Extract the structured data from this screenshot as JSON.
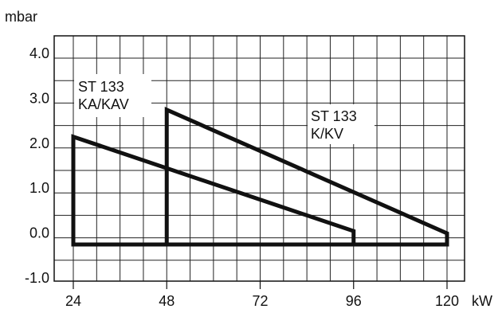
{
  "chart_data": {
    "type": "line",
    "x_unit": "kW",
    "y_unit": "mbar",
    "xlim": [
      18,
      125
    ],
    "ylim": [
      -1.0,
      4.3
    ],
    "x_ticks": [
      24,
      48,
      72,
      96,
      120
    ],
    "x_tick_labels": [
      "24",
      "48",
      "72",
      "96",
      "120"
    ],
    "y_ticks": [
      4.0,
      3.0,
      2.0,
      1.0,
      0.0,
      -1.0
    ],
    "y_tick_labels": [
      "4.0",
      "3.0",
      "2.0",
      "1.0",
      "0.0",
      "-1.0"
    ],
    "grid": true,
    "series": [
      {
        "name": "ST 133\nKA/KAV",
        "label_lines": [
          "ST 133",
          "KA/KAV"
        ],
        "x": [
          24,
          24,
          96,
          96,
          24
        ],
        "y": [
          -0.15,
          2.25,
          0.15,
          -0.15,
          -0.15
        ]
      },
      {
        "name": "ST 133\nK/KV",
        "label_lines": [
          "ST 133",
          "K/KV"
        ],
        "x": [
          48,
          48,
          120,
          120,
          48
        ],
        "y": [
          -0.15,
          2.85,
          0.1,
          -0.15,
          -0.15
        ]
      }
    ]
  }
}
